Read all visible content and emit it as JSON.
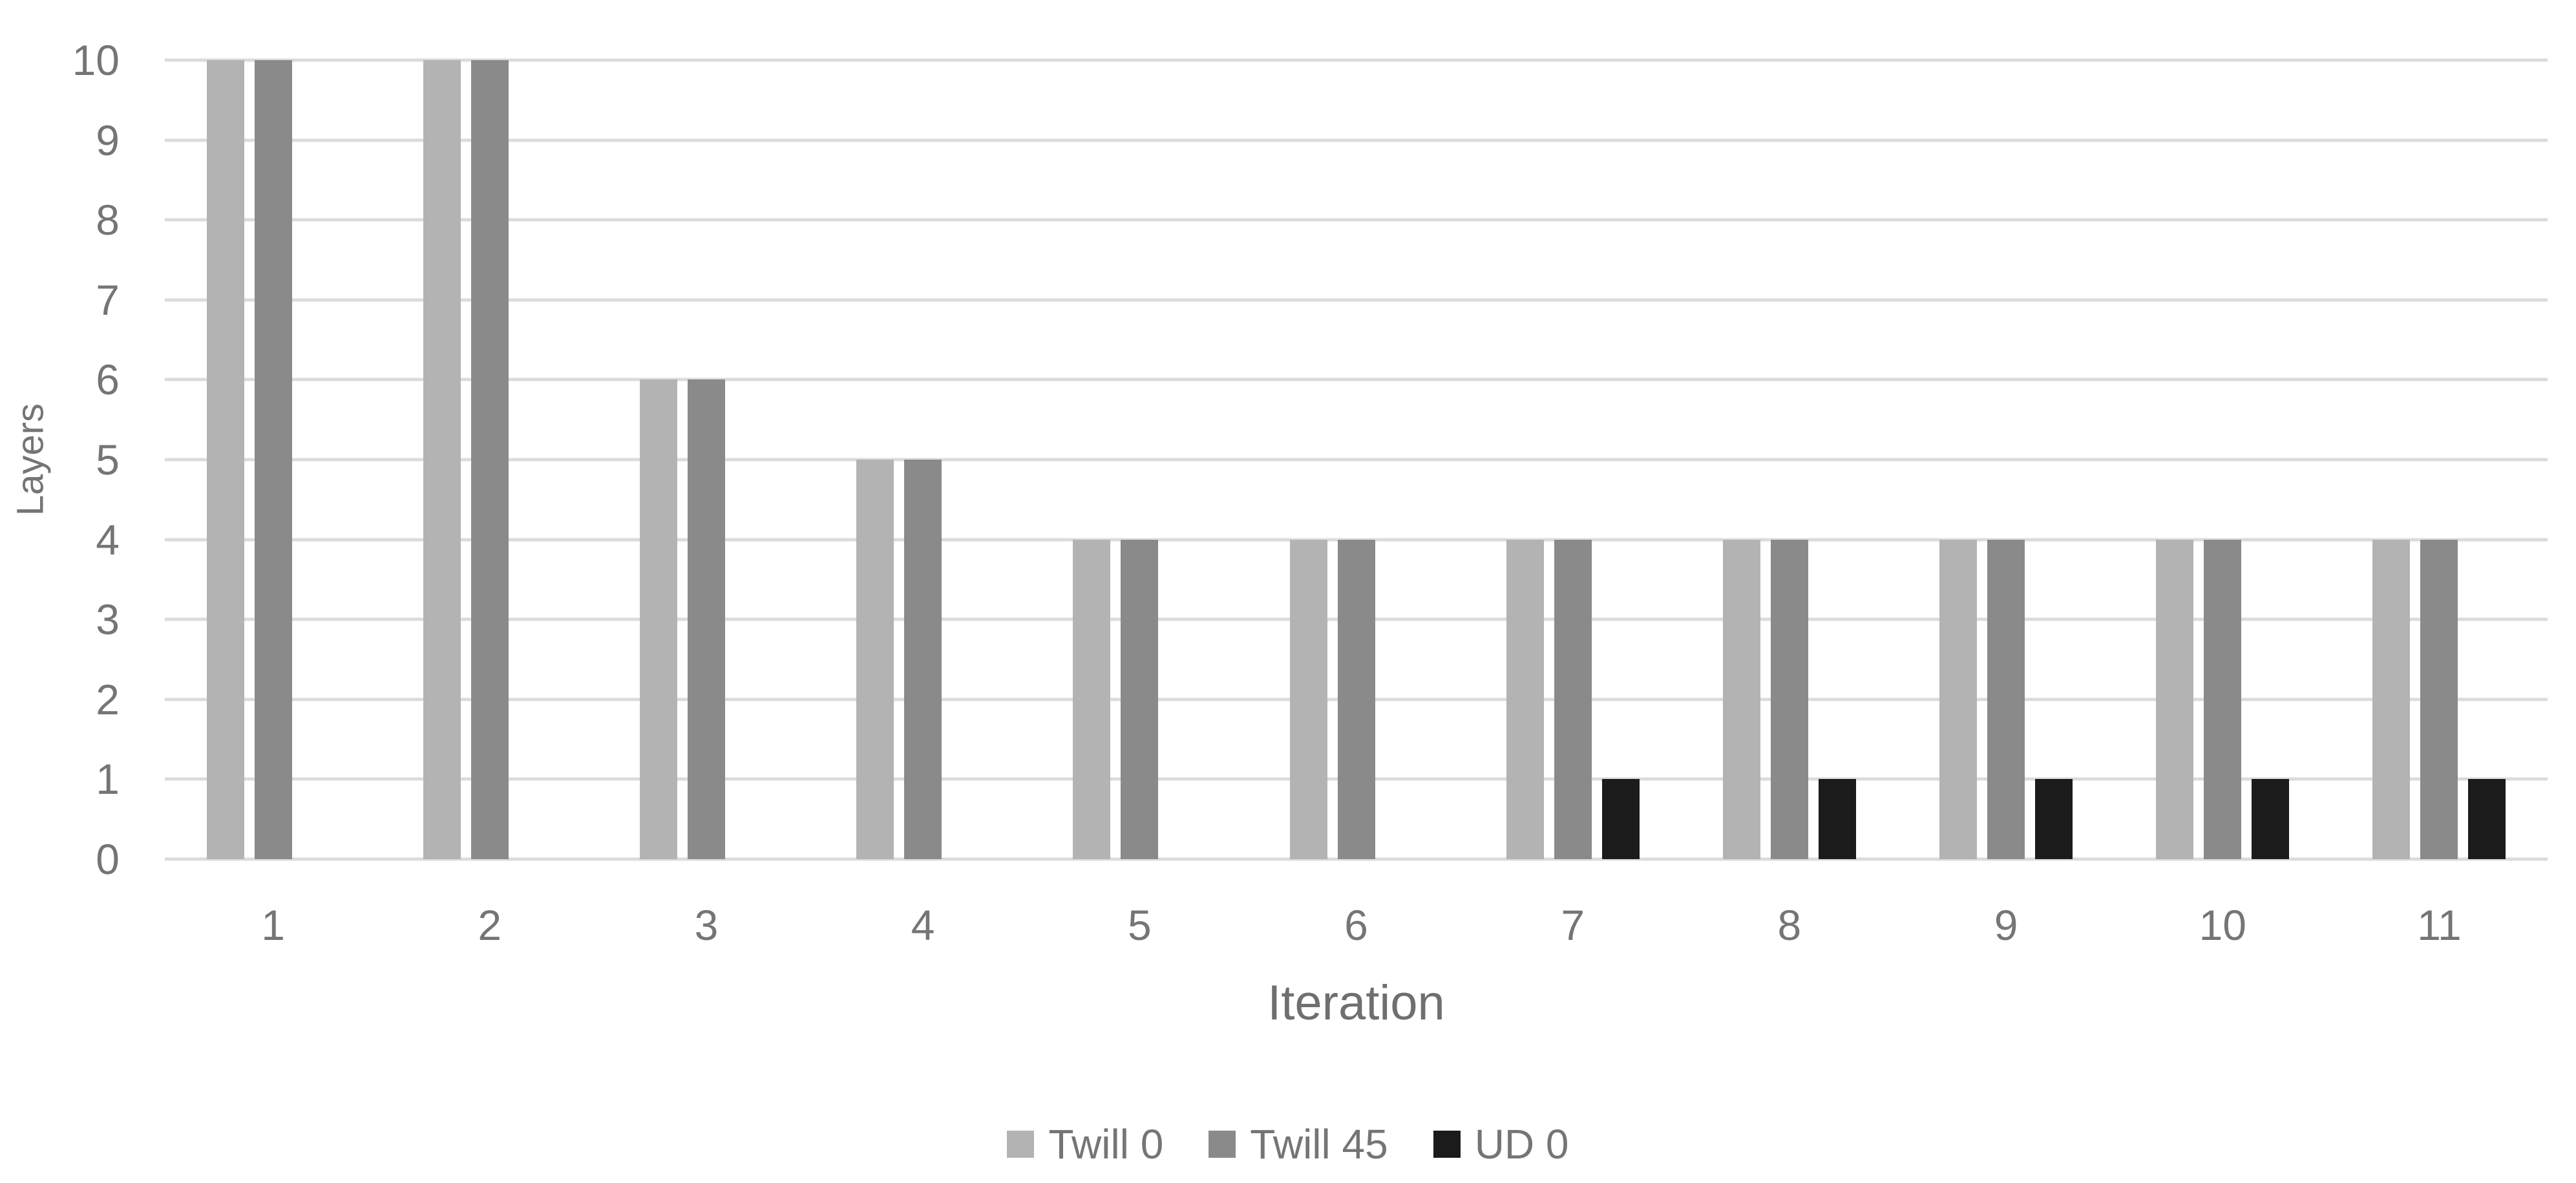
{
  "chart_data": {
    "type": "bar",
    "title": "",
    "categories": [
      "1",
      "2",
      "3",
      "4",
      "5",
      "6",
      "7",
      "8",
      "9",
      "10",
      "11"
    ],
    "series": [
      {
        "name": "Twill 0",
        "color": "#b3b3b3",
        "values": [
          10,
          10,
          6,
          5,
          4,
          4,
          4,
          4,
          4,
          4,
          4
        ]
      },
      {
        "name": "Twill 45",
        "color": "#8a8a8a",
        "values": [
          10,
          10,
          6,
          5,
          4,
          4,
          4,
          4,
          4,
          4,
          4
        ]
      },
      {
        "name": "UD 0",
        "color": "#1b1b1b",
        "values": [
          0,
          0,
          0,
          0,
          0,
          0,
          1,
          1,
          1,
          1,
          1
        ]
      }
    ],
    "xlabel": "Iteration",
    "ylabel": "Layers",
    "ylim": [
      0,
      10
    ],
    "y_ticks": [
      0,
      1,
      2,
      3,
      4,
      5,
      6,
      7,
      8,
      9,
      10
    ],
    "grid": "horizontal",
    "legend_position": "bottom",
    "colors": {
      "background": "#ffffff",
      "gridline": "#dbdbdb",
      "axis_text": "#757575"
    }
  }
}
